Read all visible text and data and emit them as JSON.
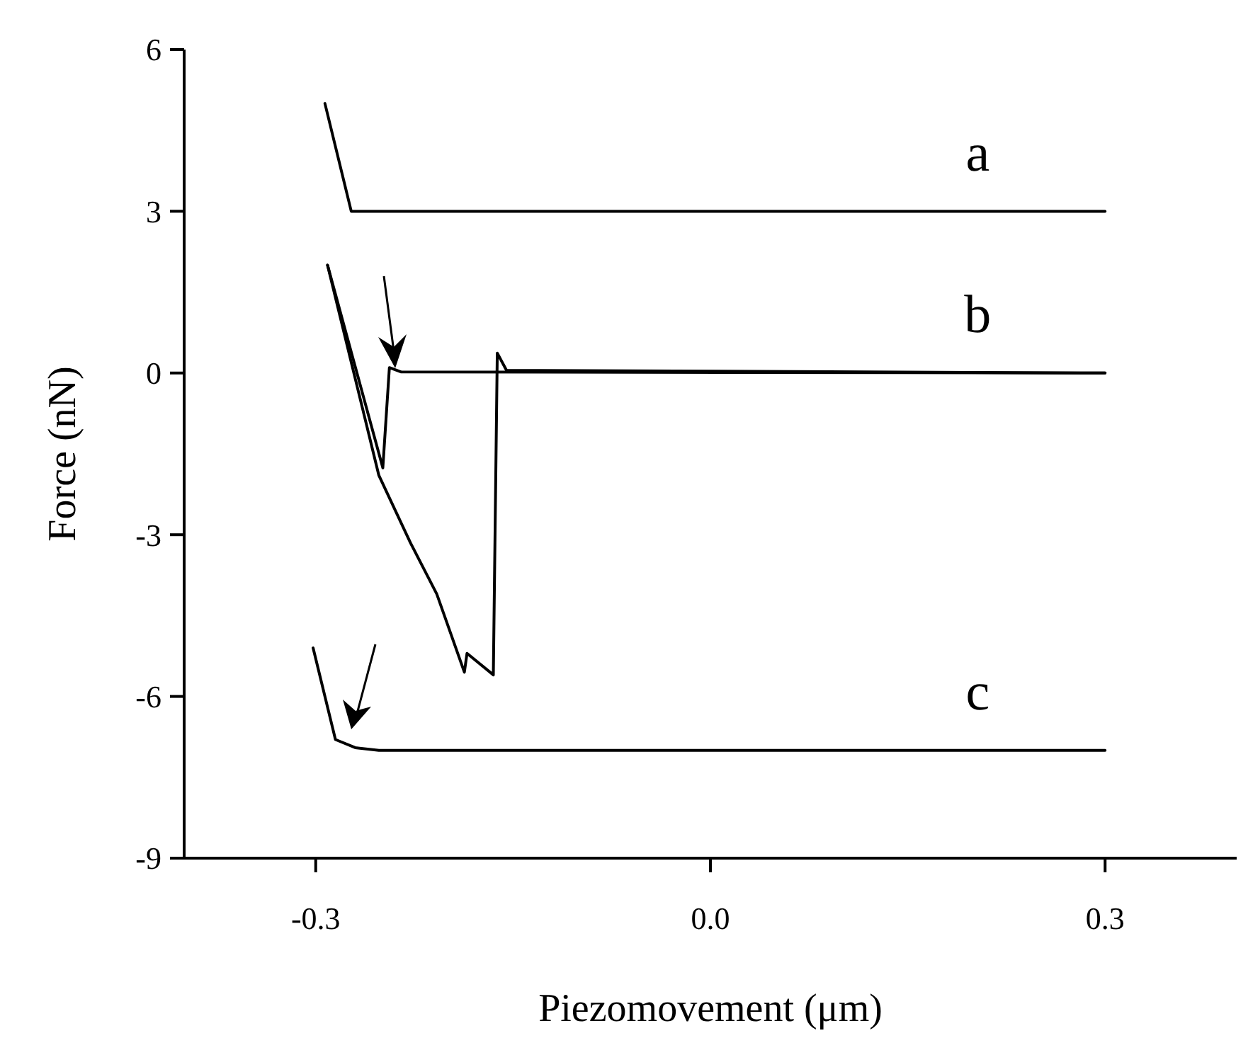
{
  "chart_data": {
    "type": "line",
    "xlabel": "Piezomovement (μm)",
    "ylabel": "Force (nN)",
    "xlim": [
      -0.4,
      0.4
    ],
    "xticks": [
      -0.3,
      {
        "value": 0,
        "label": "0.0"
      },
      0.3
    ],
    "ylim": [
      -9,
      6
    ],
    "yticks": [
      6,
      3,
      0,
      -3,
      -6,
      -9
    ],
    "grid": false,
    "marker": "none",
    "line_style": "solid",
    "series": [
      {
        "name": "a",
        "color": "#000000",
        "x": [
          -0.293,
          -0.273,
          0.3
        ],
        "values": [
          5,
          3,
          3
        ]
      },
      {
        "color": "#000000",
        "x": [
          -0.291,
          -0.249,
          -0.244,
          -0.235,
          0.3
        ],
        "values": [
          2,
          -1.76,
          0.1,
          0.02,
          0
        ]
      },
      {
        "name": "b",
        "color": "#000000",
        "x": [
          -0.291,
          -0.252,
          -0.228,
          -0.208,
          -0.187,
          -0.185,
          -0.165,
          -0.162,
          -0.155,
          0.3
        ],
        "values": [
          2,
          -1.9,
          -3.15,
          -4.1,
          -5.55,
          -5.2,
          -5.6,
          0.37,
          0.05,
          0
        ]
      },
      {
        "name": "c",
        "color": "#000000",
        "x": [
          -0.302,
          -0.285,
          -0.27,
          -0.252,
          0.3
        ],
        "values": [
          -5.1,
          -6.8,
          -6.95,
          -7,
          -7
        ]
      }
    ]
  }
}
